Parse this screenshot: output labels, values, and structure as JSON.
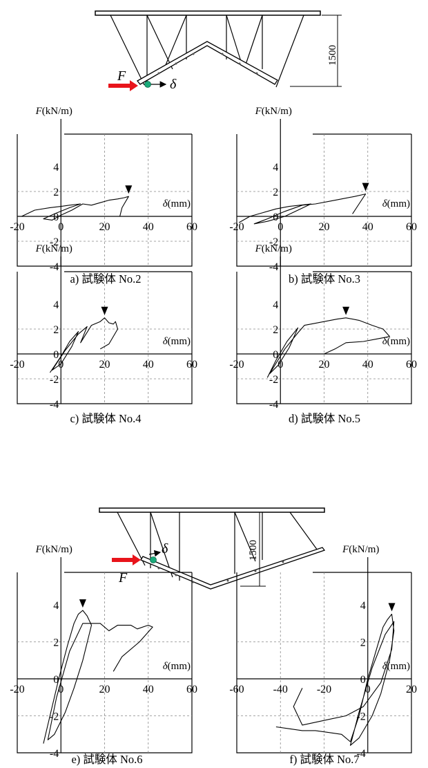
{
  "diagram_top": {
    "force_label": "F",
    "disp_label": "δ",
    "dimension": "1500"
  },
  "diagram_mid": {
    "force_label": "F",
    "disp_label": "δ",
    "dimension": "1500"
  },
  "colors": {
    "arrow": "#e8141b",
    "node": "#1aaa7a",
    "curve": "#000000",
    "grid": "#888888"
  },
  "chart_data": [
    {
      "type": "line",
      "caption": "a)  試験体 No.2",
      "xlabel": "δ(mm)",
      "ylabel": "F(kN/m)",
      "xlim": [
        -20,
        60
      ],
      "ylim": [
        -4,
        4
      ],
      "xticks": [
        "-20",
        "0",
        "20",
        "40",
        "60"
      ],
      "yticks": [
        "4",
        "2",
        "0",
        "-2",
        "-4"
      ],
      "grid": true,
      "peak_marker": {
        "x": 31,
        "y": 1.6
      },
      "series": [
        {
          "points": [
            [
              -18,
              0
            ],
            [
              -12,
              0.5
            ],
            [
              -5,
              0.7
            ],
            [
              0,
              0.8
            ],
            [
              4,
              0.9
            ],
            [
              9,
              1.0
            ],
            [
              4,
              0.7
            ],
            [
              -3,
              0.2
            ],
            [
              -8,
              -0.2
            ],
            [
              -4,
              -0.3
            ],
            [
              0,
              0.1
            ],
            [
              5,
              0.5
            ],
            [
              10,
              1.0
            ],
            [
              14,
              0.9
            ],
            [
              18,
              1.1
            ],
            [
              22,
              1.3
            ],
            [
              26,
              1.4
            ],
            [
              29,
              1.5
            ],
            [
              31,
              1.6
            ],
            [
              28,
              0.7
            ],
            [
              27,
              0
            ]
          ]
        }
      ]
    },
    {
      "type": "line",
      "caption": "b)  試験体 No.3",
      "xlabel": "δ(mm)",
      "ylabel": "F(kN/m)",
      "xlim": [
        -20,
        60
      ],
      "ylim": [
        -4,
        4
      ],
      "xticks": [
        "-20",
        "0",
        "20",
        "40",
        "60"
      ],
      "yticks": [
        "4",
        "2",
        "0",
        "-2",
        "-4"
      ],
      "grid": true,
      "peak_marker": {
        "x": 39,
        "y": 1.8
      },
      "series": [
        {
          "points": [
            [
              -19,
              -0.5
            ],
            [
              -14,
              0
            ],
            [
              -8,
              0.3
            ],
            [
              -2,
              0.6
            ],
            [
              4,
              0.8
            ],
            [
              9,
              0.9
            ],
            [
              14,
              1.0
            ],
            [
              8,
              0.5
            ],
            [
              2,
              0
            ],
            [
              -6,
              -0.4
            ],
            [
              -12,
              -0.6
            ],
            [
              -6,
              -0.2
            ],
            [
              2,
              0.4
            ],
            [
              10,
              0.9
            ],
            [
              16,
              1.0
            ],
            [
              22,
              1.2
            ],
            [
              28,
              1.4
            ],
            [
              34,
              1.6
            ],
            [
              39,
              1.8
            ],
            [
              36,
              1.0
            ],
            [
              33,
              0.2
            ]
          ]
        }
      ]
    },
    {
      "type": "line",
      "caption": "c)  試験体 No.4",
      "xlabel": "δ(mm)",
      "ylabel": "F(kN/m)",
      "xlim": [
        -20,
        60
      ],
      "ylim": [
        -4,
        4
      ],
      "xticks": [
        "-20",
        "0",
        "20",
        "40",
        "60"
      ],
      "yticks": [
        "4",
        "2",
        "0",
        "-2",
        "-4"
      ],
      "grid": true,
      "peak_marker": {
        "x": 20,
        "y": 2.9
      },
      "series": [
        {
          "points": [
            [
              -5,
              -1.5
            ],
            [
              0,
              -0.2
            ],
            [
              4,
              1.0
            ],
            [
              8,
              1.8
            ],
            [
              5,
              0.6
            ],
            [
              0,
              -0.8
            ],
            [
              -4,
              -1.3
            ],
            [
              2,
              0.3
            ],
            [
              8,
              1.6
            ],
            [
              12,
              2.2
            ],
            [
              9,
              0.9
            ],
            [
              14,
              2.3
            ],
            [
              18,
              2.6
            ],
            [
              20,
              2.9
            ],
            [
              22,
              2.5
            ],
            [
              24,
              2.4
            ],
            [
              25,
              2.6
            ],
            [
              26,
              2.0
            ],
            [
              22,
              0.8
            ],
            [
              18,
              0.4
            ]
          ]
        }
      ]
    },
    {
      "type": "line",
      "caption": "d)  試験体 No.5",
      "xlabel": "δ(mm)",
      "ylabel": "F(kN/m)",
      "xlim": [
        -20,
        60
      ],
      "ylim": [
        -4,
        4
      ],
      "xticks": [
        "-20",
        "0",
        "20",
        "40",
        "60"
      ],
      "yticks": [
        "4",
        "2",
        "0",
        "-2",
        "-4"
      ],
      "grid": true,
      "peak_marker": {
        "x": 30,
        "y": 2.9
      },
      "series": [
        {
          "points": [
            [
              -6,
              -1.9
            ],
            [
              -2,
              -0.5
            ],
            [
              3,
              1.0
            ],
            [
              8,
              2.1
            ],
            [
              4,
              0.5
            ],
            [
              -1,
              -0.9
            ],
            [
              -5,
              -1.6
            ],
            [
              2,
              0.4
            ],
            [
              8,
              1.7
            ],
            [
              11,
              2.3
            ],
            [
              14,
              2.4
            ],
            [
              20,
              2.6
            ],
            [
              26,
              2.8
            ],
            [
              30,
              2.9
            ],
            [
              36,
              2.7
            ],
            [
              42,
              2.3
            ],
            [
              47,
              2.0
            ],
            [
              50,
              1.4
            ],
            [
              44,
              1.2
            ],
            [
              38,
              1.0
            ],
            [
              30,
              0.9
            ],
            [
              25,
              0.4
            ],
            [
              20,
              0
            ]
          ]
        }
      ]
    },
    {
      "type": "line",
      "caption": "e)  試験体 No.6",
      "xlabel": "δ(mm)",
      "ylabel": "F(kN/m)",
      "xlim": [
        -20,
        60
      ],
      "ylim": [
        -4,
        4
      ],
      "xticks": [
        "-20",
        "0",
        "20",
        "40",
        "60"
      ],
      "yticks": [
        "4",
        "2",
        "0",
        "-2",
        "-4"
      ],
      "grid": true,
      "peak_marker": {
        "x": 10,
        "y": 3.7
      },
      "series": [
        {
          "points": [
            [
              -8,
              -3.5
            ],
            [
              -5,
              -2
            ],
            [
              -1,
              0
            ],
            [
              3,
              1.8
            ],
            [
              6,
              3.0
            ],
            [
              8,
              3.5
            ],
            [
              10,
              3.7
            ],
            [
              12,
              3.4
            ],
            [
              14,
              2.9
            ],
            [
              10,
              1.0
            ],
            [
              6,
              -0.5
            ],
            [
              2,
              -1.8
            ],
            [
              -3,
              -3.0
            ],
            [
              -6,
              -3.3
            ],
            [
              -2,
              -1.0
            ],
            [
              4,
              1.5
            ],
            [
              10,
              3.0
            ],
            [
              18,
              3.0
            ],
            [
              22,
              2.6
            ],
            [
              26,
              2.9
            ],
            [
              32,
              2.9
            ],
            [
              35,
              2.7
            ],
            [
              40,
              2.9
            ],
            [
              42,
              2.8
            ],
            [
              36,
              2.0
            ],
            [
              28,
              1.2
            ],
            [
              24,
              0.4
            ]
          ]
        }
      ]
    },
    {
      "type": "line",
      "caption": "f)  試験体 No.7",
      "xlabel": "δ(mm)",
      "ylabel": "F(kN/m)",
      "xlim": [
        -60,
        20
      ],
      "ylim": [
        -4,
        4
      ],
      "xticks": [
        "-60",
        "-40",
        "-20",
        "0",
        "20"
      ],
      "yticks": [
        "4",
        "2",
        "0",
        "-2",
        "-4"
      ],
      "grid": true,
      "peak_marker": {
        "x": 11,
        "y": 3.5
      },
      "series": [
        {
          "points": [
            [
              -42,
              -2.6
            ],
            [
              -36,
              -2.7
            ],
            [
              -30,
              -2.8
            ],
            [
              -24,
              -2.8
            ],
            [
              -18,
              -2.9
            ],
            [
              -12,
              -3.0
            ],
            [
              -8,
              -3.4
            ],
            [
              -4,
              -2.0
            ],
            [
              0,
              0
            ],
            [
              4,
              1.6
            ],
            [
              7,
              2.8
            ],
            [
              9,
              3.2
            ],
            [
              11,
              3.5
            ],
            [
              12,
              2.6
            ],
            [
              10,
              1.0
            ],
            [
              6,
              -0.8
            ],
            [
              2,
              -2.0
            ],
            [
              -4,
              -3.2
            ],
            [
              -8,
              -3.6
            ],
            [
              -4,
              -1.8
            ],
            [
              2,
              0.6
            ],
            [
              8,
              2.4
            ],
            [
              12,
              3.1
            ],
            [
              11,
              1.6
            ],
            [
              6,
              -0.2
            ],
            [
              -2,
              -1.5
            ],
            [
              -10,
              -2.0
            ],
            [
              -18,
              -2.2
            ],
            [
              -30,
              -2.5
            ],
            [
              -34,
              -1.5
            ],
            [
              -30,
              -0.5
            ]
          ]
        }
      ]
    }
  ]
}
